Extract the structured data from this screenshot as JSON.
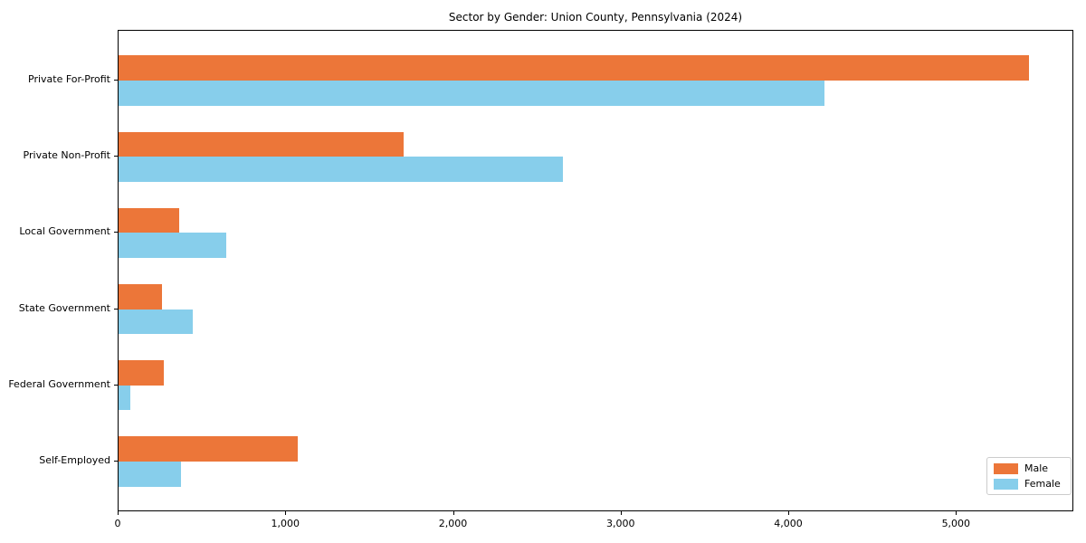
{
  "title": "Sector by Gender: Union County, Pennsylvania (2024)",
  "chart_data": {
    "type": "bar",
    "orientation": "horizontal",
    "title": "Sector by Gender: Union County, Pennsylvania (2024)",
    "categories": [
      "Private For-Profit",
      "Private Non-Profit",
      "Local Government",
      "State Government",
      "Federal Government",
      "Self-Employed"
    ],
    "series": [
      {
        "name": "Male",
        "color": "#ec7639",
        "values": [
          5430,
          1700,
          360,
          260,
          270,
          1070
        ]
      },
      {
        "name": "Female",
        "color": "#87ceeb",
        "values": [
          4210,
          2650,
          640,
          440,
          70,
          370
        ]
      }
    ],
    "x_axis": {
      "min": 0,
      "max": 5700,
      "ticks": [
        0,
        1000,
        2000,
        3000,
        4000,
        5000
      ],
      "tick_labels": [
        "0",
        "1,000",
        "2,000",
        "3,000",
        "4,000",
        "5,000"
      ]
    },
    "y_axis": {
      "label": ""
    },
    "xlabel": "",
    "ylabel": "",
    "grid": false,
    "legend": {
      "position": "lower right",
      "entries": [
        "Male",
        "Female"
      ]
    }
  },
  "colors": {
    "male_bar": "#ec7639",
    "female_bar": "#87ceeb",
    "axis": "#000000",
    "background": "#ffffff",
    "legend_border": "#cccccc"
  }
}
